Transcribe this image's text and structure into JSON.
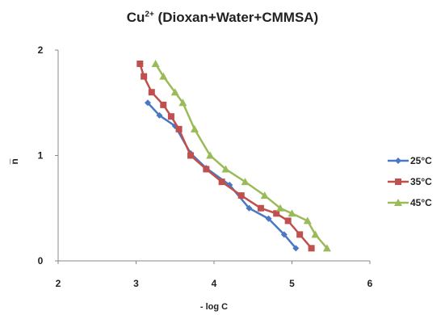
{
  "chart_data": {
    "type": "line",
    "title_main": "Cu",
    "title_sup": "2+",
    "title_rest": " (Dioxan+Water+CMMSA)",
    "xlabel": "- log C",
    "ylabel": "n̅",
    "xlim": [
      2,
      6
    ],
    "ylim": [
      0,
      2
    ],
    "xticks": [
      "2",
      "3",
      "4",
      "5",
      "6"
    ],
    "yticks": [
      "0",
      "1",
      "2"
    ],
    "grid": false,
    "legend_position": "right",
    "series": [
      {
        "name": "25°C",
        "color": "#4a78c2",
        "marker": "diamond",
        "points": [
          [
            3.15,
            1.5
          ],
          [
            3.3,
            1.38
          ],
          [
            3.5,
            1.28
          ],
          [
            3.7,
            1.02
          ],
          [
            3.9,
            0.88
          ],
          [
            4.2,
            0.72
          ],
          [
            4.45,
            0.5
          ],
          [
            4.7,
            0.4
          ],
          [
            4.9,
            0.25
          ],
          [
            5.05,
            0.12
          ]
        ]
      },
      {
        "name": "35°C",
        "color": "#c0504d",
        "marker": "square",
        "points": [
          [
            3.05,
            1.87
          ],
          [
            3.1,
            1.75
          ],
          [
            3.2,
            1.6
          ],
          [
            3.35,
            1.48
          ],
          [
            3.45,
            1.37
          ],
          [
            3.55,
            1.25
          ],
          [
            3.7,
            1.0
          ],
          [
            3.9,
            0.87
          ],
          [
            4.1,
            0.75
          ],
          [
            4.35,
            0.62
          ],
          [
            4.6,
            0.5
          ],
          [
            4.8,
            0.45
          ],
          [
            4.95,
            0.38
          ],
          [
            5.1,
            0.25
          ],
          [
            5.25,
            0.12
          ]
        ]
      },
      {
        "name": "45°C",
        "color": "#9bbb59",
        "marker": "triangle",
        "points": [
          [
            3.25,
            1.87
          ],
          [
            3.35,
            1.75
          ],
          [
            3.5,
            1.6
          ],
          [
            3.6,
            1.5
          ],
          [
            3.75,
            1.25
          ],
          [
            3.95,
            1.0
          ],
          [
            4.15,
            0.87
          ],
          [
            4.4,
            0.75
          ],
          [
            4.65,
            0.62
          ],
          [
            4.85,
            0.5
          ],
          [
            5.0,
            0.45
          ],
          [
            5.2,
            0.38
          ],
          [
            5.3,
            0.25
          ],
          [
            5.45,
            0.12
          ]
        ]
      }
    ]
  }
}
